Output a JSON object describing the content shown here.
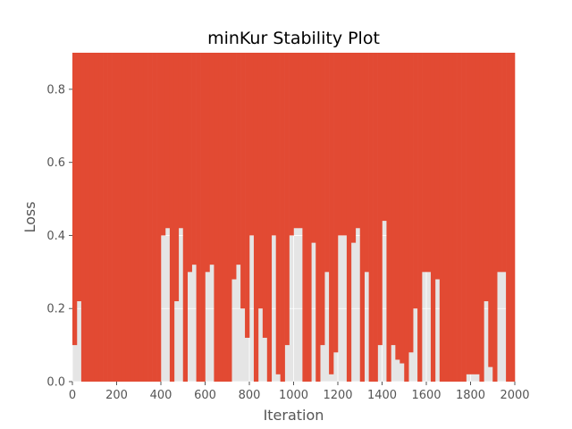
{
  "chart_data": {
    "type": "line",
    "title": "minKur Stability Plot",
    "xlabel": "Iteration",
    "ylabel": "Loss",
    "xlim": [
      0,
      2000
    ],
    "ylim": [
      0,
      0.9
    ],
    "xticks": [
      0,
      200,
      400,
      600,
      800,
      1000,
      1200,
      1400,
      1600,
      1800,
      2000
    ],
    "yticks": [
      0.0,
      0.2,
      0.4,
      0.6,
      0.8
    ],
    "ytick_labels": [
      "0.0",
      "0.2",
      "0.4",
      "0.6",
      "0.8"
    ],
    "grid": true,
    "style": "ggplot",
    "colors": {
      "series": "#E24A33",
      "plot_bg": "#E5E5E5",
      "grid": "#FFFFFF"
    },
    "series": [
      {
        "x_start": 0,
        "x_step": 1,
        "envelope_step": 20,
        "max_values": [
          0.9,
          0.9,
          0.9,
          0.9,
          0.9,
          0.9,
          0.9,
          0.9,
          0.9,
          0.9,
          0.9,
          0.9,
          0.9,
          0.9,
          0.9,
          0.9,
          0.9,
          0.9,
          0.9,
          0.9,
          0.9,
          0.9,
          0.9,
          0.9,
          0.9,
          0.9,
          0.9,
          0.9,
          0.9,
          0.9,
          0.9,
          0.9,
          0.9,
          0.9,
          0.9,
          0.9,
          0.9,
          0.9,
          0.9,
          0.9,
          0.9,
          0.9,
          0.9,
          0.9,
          0.9,
          0.9,
          0.9,
          0.9,
          0.9,
          0.9,
          0.9,
          0.9,
          0.9,
          0.9,
          0.9,
          0.9,
          0.9,
          0.9,
          0.9,
          0.9,
          0.9,
          0.9,
          0.9,
          0.9,
          0.9,
          0.9,
          0.9,
          0.9,
          0.9,
          0.9,
          0.9,
          0.9,
          0.9,
          0.9,
          0.9,
          0.9,
          0.9,
          0.9,
          0.9,
          0.9,
          0.9,
          0.9,
          0.9,
          0.9,
          0.9,
          0.9,
          0.9,
          0.9,
          0.9,
          0.9,
          0.9,
          0.9,
          0.9,
          0.9,
          0.9,
          0.9,
          0.9,
          0.9,
          0.9,
          0.9
        ],
        "min_values": [
          0.1,
          0.22,
          0.0,
          0.0,
          0.0,
          0.0,
          0.0,
          0.0,
          0.0,
          0.0,
          0.0,
          0.0,
          0.0,
          0.0,
          0.0,
          0.0,
          0.0,
          0.0,
          0.0,
          0.0,
          0.4,
          0.42,
          0.0,
          0.22,
          0.42,
          0.0,
          0.3,
          0.32,
          0.0,
          0.0,
          0.3,
          0.32,
          0.0,
          0.0,
          0.0,
          0.0,
          0.28,
          0.32,
          0.2,
          0.12,
          0.4,
          0.0,
          0.2,
          0.12,
          0.0,
          0.4,
          0.02,
          0.0,
          0.1,
          0.4,
          0.42,
          0.42,
          0.0,
          0.0,
          0.38,
          0.0,
          0.1,
          0.3,
          0.02,
          0.08,
          0.4,
          0.4,
          0.0,
          0.38,
          0.42,
          0.0,
          0.3,
          0.0,
          0.0,
          0.1,
          0.44,
          0.0,
          0.1,
          0.06,
          0.05,
          0.0,
          0.08,
          0.2,
          0.0,
          0.3,
          0.3,
          0.0,
          0.28,
          0.0,
          0.0,
          0.0,
          0.0,
          0.0,
          0.0,
          0.02,
          0.02,
          0.02,
          0.0,
          0.22,
          0.04,
          0.0,
          0.3,
          0.3,
          0.0,
          0.0
        ]
      }
    ]
  }
}
